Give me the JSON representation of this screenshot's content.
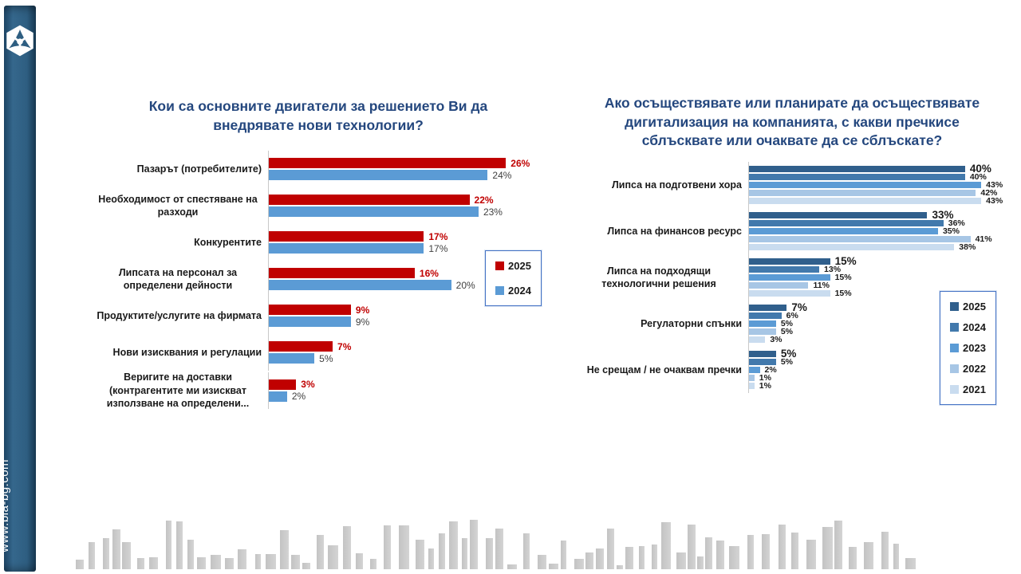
{
  "sidebar": {
    "website": "www.bia-bg.com",
    "logo": "bia-hexagon-logo"
  },
  "colors": {
    "title_navy": "#24477E",
    "sidebar_blue": "#2E5E81",
    "axis_gray": "#C9C9C9",
    "legend_border": "#4472C4"
  },
  "chart_data": [
    {
      "type": "bar",
      "orientation": "horizontal",
      "title": "Кои са основните двигатели за решението Ви да внедрявате нови технологии?",
      "categories": [
        "Пазарът (потребителите)",
        "Необходимост от спестяване на разходи",
        "Конкурентите",
        "Липсата на персонал за определени дейности",
        "Продуктите/услугите на фирмата",
        "Нови изисквания и регулации",
        "Веригите на доставки (контрагентите ми изискват използване на определени..."
      ],
      "series": [
        {
          "name": "2025",
          "color": "#C00000",
          "values": [
            26,
            22,
            17,
            16,
            9,
            7,
            3
          ]
        },
        {
          "name": "2024",
          "color": "#5B9BD5",
          "values": [
            24,
            23,
            17,
            20,
            9,
            5,
            2
          ]
        }
      ],
      "value_suffix": "%",
      "xlim": [
        0,
        30
      ],
      "grid": false,
      "legend_position": "right-inside"
    },
    {
      "type": "bar",
      "orientation": "horizontal",
      "title": "Ако осъществявате или планирате да осъществявате дигитализация на компанията, с какви пречкисе сблъсквате или очаквате да се сблъскате?",
      "categories": [
        "Липса на подготвени хора",
        "Липса на финансов ресурс",
        "Липса на подходящи технологични решения",
        "Регулаторни спънки",
        "Не срещам / не очаквам пречки"
      ],
      "series": [
        {
          "name": "2025",
          "color": "#305F8C",
          "values": [
            40,
            33,
            15,
            7,
            5
          ]
        },
        {
          "name": "2024",
          "color": "#4279AC",
          "values": [
            40,
            36,
            13,
            6,
            5
          ]
        },
        {
          "name": "2023",
          "color": "#5B9BD5",
          "values": [
            43,
            35,
            15,
            5,
            2
          ]
        },
        {
          "name": "2022",
          "color": "#A7C6E5",
          "values": [
            42,
            41,
            11,
            5,
            1
          ]
        },
        {
          "name": "2021",
          "color": "#C9DCEF",
          "values": [
            43,
            38,
            15,
            3,
            1
          ]
        }
      ],
      "value_suffix": "%",
      "xlim": [
        0,
        48
      ],
      "grid": false,
      "legend_position": "right-inside"
    }
  ]
}
